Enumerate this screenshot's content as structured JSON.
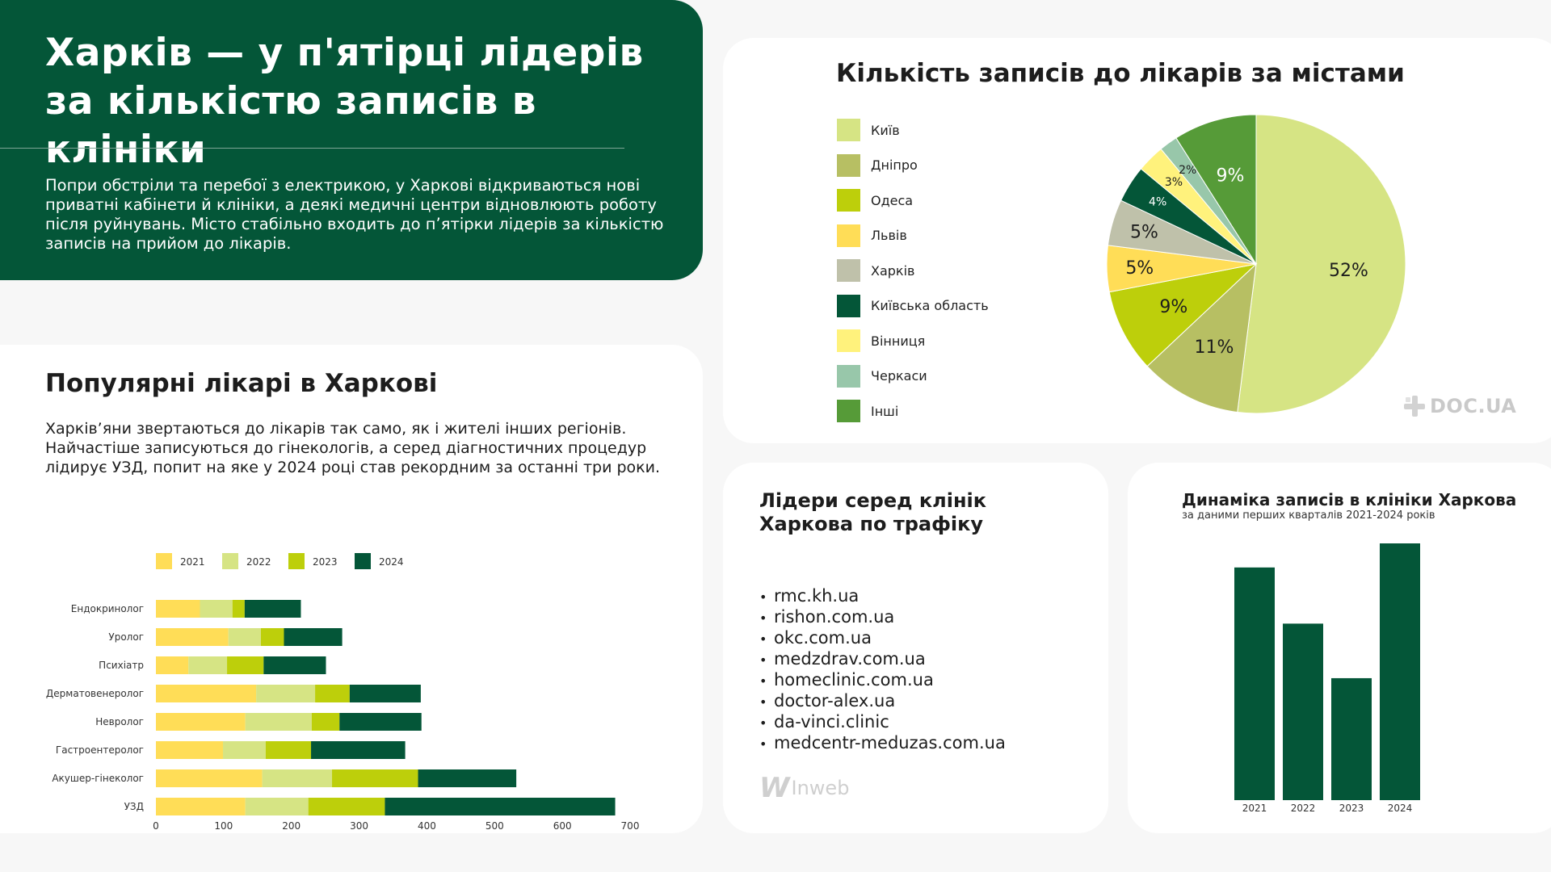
{
  "hero": {
    "title": "Харків — у п'ятірці лідерів за кількістю записів в клініки",
    "text": "Попри обстріли та перебої з електрикою, у Харкові відкриваються нові приватні кабінети й клініки, а деякі медичні центри відновлюють роботу після руйнувань. Місто стабільно входить до п’ятірки лідерів за кількістю записів на прийом до лікарів."
  },
  "doctors": {
    "title": "Популярні лікарі в Харкові",
    "text": "Харків’яни звертаються до лікарів так само, як і жителі інших регіонів. Найчастіше записуються до гінекологів, а серед діагностичних процедур лідирує УЗД, попит на яке у 2024 році став рекордним за останні три роки."
  },
  "pie": {
    "title": "Кількість записів до лікарів за містами"
  },
  "leaders": {
    "title": "Лідери серед клінік Харкова по трафіку",
    "bullet": "•",
    "items": [
      "rmc.kh.ua",
      "rishon.com.ua",
      "okc.com.ua",
      "medzdrav.com.ua",
      "homeclinic.com.ua",
      "doctor-alex.ua",
      "da-vinci.clinic",
      "medcentr-meduzas.com.ua"
    ]
  },
  "dynamics": {
    "title": "Динаміка записів в клініки Харкова",
    "subtitle": "за даними перших кварталів 2021-2024 років"
  },
  "logos": {
    "docua": "DOC.UA",
    "inweb_w": "W",
    "inweb": "Inweb"
  },
  "colors": {
    "dark_green": "#045638",
    "light_green": "#d6e484",
    "olive": "#b7bf63",
    "lime": "#bdcf0b",
    "yellow": "#ffdd57",
    "gray": "#bfc1aa",
    "pale_yellow": "#fff27c",
    "mint": "#98c7aa",
    "green": "#569b38"
  },
  "chart_data": [
    {
      "type": "bar",
      "orientation": "horizontal",
      "stacked": true,
      "categories": [
        "Ендокринолог",
        "Уролог",
        "Психіатр",
        "Дерматовенеролог",
        "Невролог",
        "Гастроентеролог",
        "Акушер-гінеколог",
        "УЗД"
      ],
      "series": [
        {
          "name": "2021",
          "color": "#ffdd57",
          "values": [
            65,
            107,
            48,
            148,
            132,
            99,
            157,
            132
          ]
        },
        {
          "name": "2022",
          "color": "#d6e484",
          "values": [
            48,
            48,
            57,
            87,
            98,
            63,
            103,
            93
          ]
        },
        {
          "name": "2023",
          "color": "#bdcf0b",
          "values": [
            18,
            34,
            54,
            51,
            41,
            67,
            127,
            113
          ]
        },
        {
          "name": "2024",
          "color": "#045638",
          "values": [
            83,
            86,
            92,
            105,
            121,
            139,
            145,
            340
          ]
        }
      ],
      "xticks": [
        0,
        100,
        200,
        300,
        400,
        500,
        600,
        700
      ],
      "xlim": [
        0,
        700
      ],
      "legend_position": "top"
    },
    {
      "type": "pie",
      "labels": [
        "Київ",
        "Дніпро",
        "Одеса",
        "Львів",
        "Харків",
        "Київська область",
        "Вінниця",
        "Черкаси",
        "Інші"
      ],
      "values": [
        52,
        11,
        9,
        5,
        5,
        4,
        3,
        2,
        9
      ],
      "value_labels": [
        "52%",
        "11%",
        "9%",
        "5%",
        "5%",
        "4%",
        "3%",
        "2%",
        "9%"
      ],
      "colors": [
        "#d6e484",
        "#b7bf63",
        "#bdcf0b",
        "#ffdd57",
        "#bfc1aa",
        "#045638",
        "#fff27c",
        "#98c7aa",
        "#569b38"
      ],
      "legend_position": "left"
    },
    {
      "type": "bar",
      "categories": [
        "2021",
        "2022",
        "2023",
        "2024"
      ],
      "values": [
        290,
        220,
        152,
        320
      ],
      "color": "#045638"
    }
  ]
}
